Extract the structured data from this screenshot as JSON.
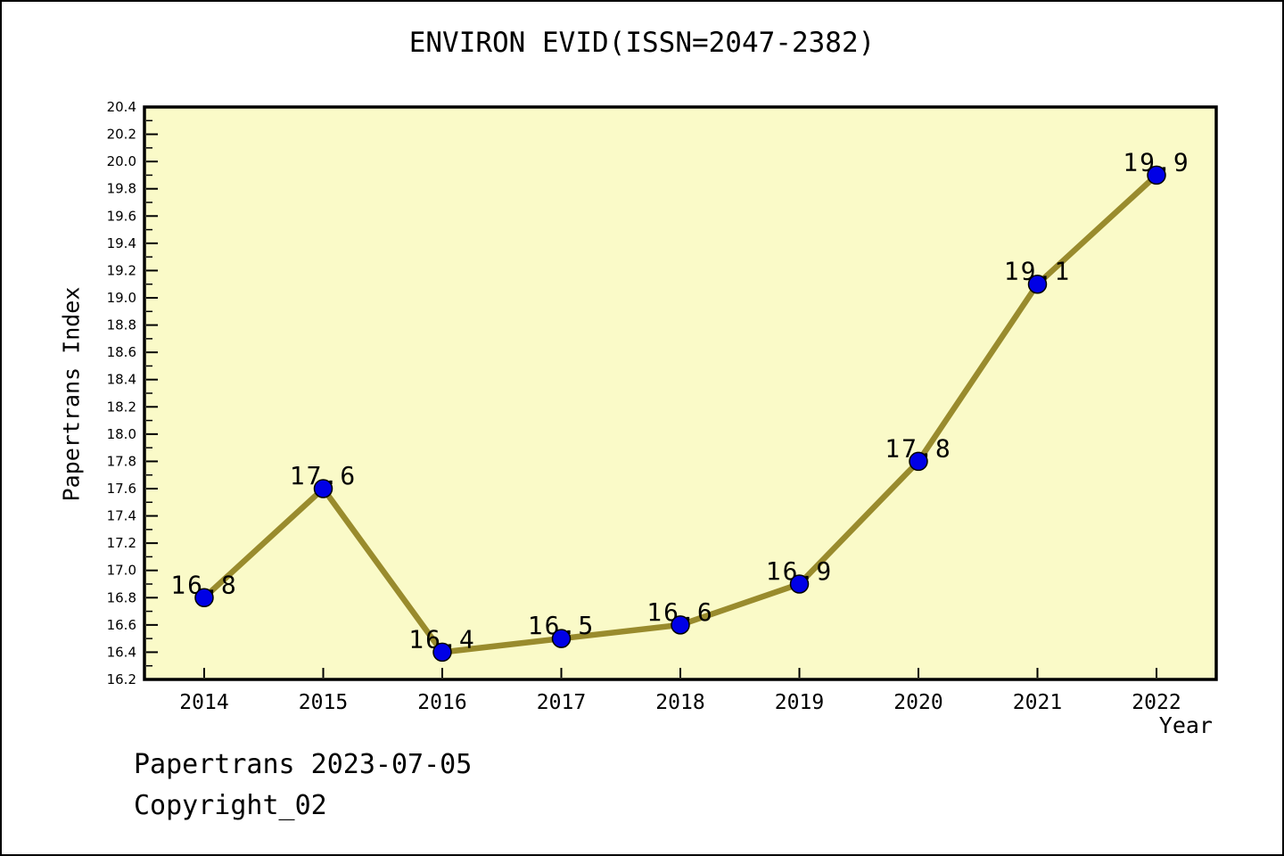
{
  "header": {
    "title": "ENVIRON EVID(ISSN=2047-2382)"
  },
  "chart_data": {
    "type": "line",
    "title": "ENVIRON EVID(ISSN=2047-2382)",
    "xlabel": "Year",
    "ylabel": "Papertrans Index",
    "categories": [
      2014,
      2015,
      2016,
      2017,
      2018,
      2019,
      2020,
      2021,
      2022
    ],
    "series": [
      {
        "name": "Papertrans Index",
        "values": [
          16.8,
          17.6,
          16.4,
          16.5,
          16.6,
          16.9,
          17.8,
          19.1,
          19.9
        ]
      }
    ],
    "point_labels": [
      "16.8",
      "17.6",
      "16.4",
      "16.5",
      "16.6",
      "16.9",
      "17.8",
      "19.1",
      "19.9"
    ],
    "ylim": [
      16.2,
      20.4
    ],
    "ytick_step": 0.2,
    "ytick_minor_step": 0.1,
    "grid": false,
    "legend": "none",
    "colors": {
      "line": "#998B2D",
      "marker_fill": "#0000E6",
      "marker_edge": "#000000",
      "plot_background": "#FAFAC8",
      "axis": "#000000",
      "text": "#000000"
    }
  },
  "footer": {
    "line1": "Papertrans 2023-07-05",
    "line2": "Copyright_02"
  }
}
